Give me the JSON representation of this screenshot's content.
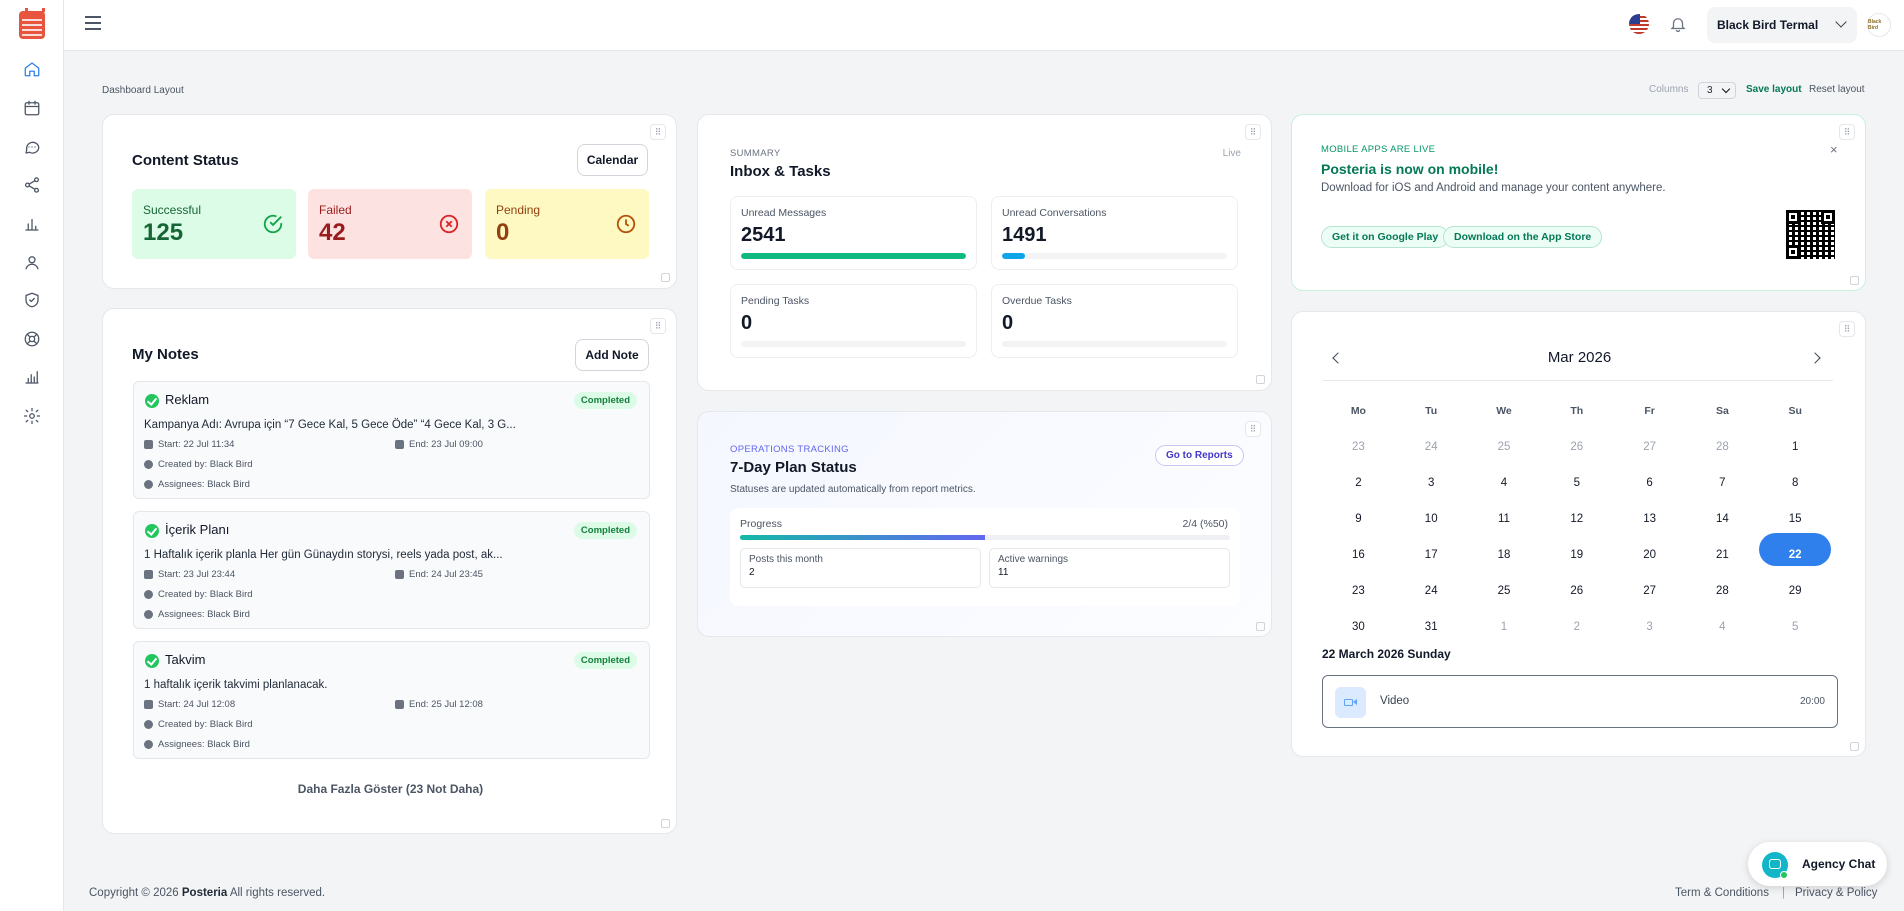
{
  "topbar": {
    "account_name": "Black Bird Termal",
    "avatar_text": "Black Bird"
  },
  "breadcrumb": "Dashboard Layout",
  "layout_controls": {
    "columns_label": "Columns",
    "columns_value": "3",
    "save": "Save layout",
    "reset": "Reset layout"
  },
  "content_status": {
    "title": "Content Status",
    "calendar_button": "Calendar",
    "stats": [
      {
        "label": "Successful",
        "value": "125"
      },
      {
        "label": "Failed",
        "value": "42"
      },
      {
        "label": "Pending",
        "value": "0"
      }
    ]
  },
  "notes": {
    "title": "My Notes",
    "add_button": "Add Note",
    "items": [
      {
        "title": "Reklam",
        "status": "Completed",
        "desc": "Kampanya Adı: Avrupa için “7 Gece Kal, 5 Gece Öde” “4 Gece Kal, 3 G...",
        "start": "Start: 22 Jul 11:34",
        "end": "End: 23 Jul 09:00",
        "created": "Created by: Black Bird",
        "assignees": "Assignees: Black Bird"
      },
      {
        "title": "İçerik Planı",
        "status": "Completed",
        "desc": "1 Haftalık içerik planla Her gün Günaydın storysi, reels yada post, ak...",
        "start": "Start: 23 Jul 23:44",
        "end": "End: 24 Jul 23:45",
        "created": "Created by: Black Bird",
        "assignees": "Assignees: Black Bird"
      },
      {
        "title": "Takvim",
        "status": "Completed",
        "desc": "1 haftalık içerik takvimi planlanacak.",
        "start": "Start: 24 Jul 12:08",
        "end": "End: 25 Jul 12:08",
        "created": "Created by: Black Bird",
        "assignees": "Assignees: Black Bird"
      }
    ],
    "show_more": "Daha Fazla Göster (23 Not Daha)"
  },
  "inbox": {
    "eyebrow": "Summary",
    "title": "Inbox & Tasks",
    "live": "Live",
    "metrics": [
      {
        "label": "Unread Messages",
        "value": "2541",
        "progress": 1.0,
        "color": "#10b981"
      },
      {
        "label": "Unread Conversations",
        "value": "1491",
        "progress": 0.1,
        "color": "#0ea5e9"
      },
      {
        "label": "Pending Tasks",
        "value": "0",
        "progress": 0,
        "color": "#10b981"
      },
      {
        "label": "Overdue Tasks",
        "value": "0",
        "progress": 0,
        "color": "#10b981"
      }
    ]
  },
  "operations": {
    "eyebrow": "Operations Tracking",
    "title": "7-Day Plan Status",
    "subtitle": "Statuses are updated automatically from report metrics.",
    "reports_button": "Go to Reports",
    "progress_label": "Progress",
    "progress_text": "2/4 (%50)",
    "progress": 0.5,
    "posts_label": "Posts this month",
    "posts_value": "2",
    "warnings_label": "Active warnings",
    "warnings_value": "11"
  },
  "mobile": {
    "eyebrow": "Mobile apps are live",
    "title": "Posteria is now on mobile!",
    "text": "Download for iOS and Android and manage your content anywhere.",
    "google": "Get it on Google Play",
    "apple": "Download on the App Store"
  },
  "calendar": {
    "month": "Mar 2026",
    "weekdays": [
      "Mo",
      "Tu",
      "We",
      "Th",
      "Fr",
      "Sa",
      "Su"
    ],
    "weeks": [
      [
        "23",
        "24",
        "25",
        "26",
        "27",
        "28",
        "1"
      ],
      [
        "2",
        "3",
        "4",
        "5",
        "6",
        "7",
        "8"
      ],
      [
        "9",
        "10",
        "11",
        "12",
        "13",
        "14",
        "15"
      ],
      [
        "16",
        "17",
        "18",
        "19",
        "20",
        "21",
        "22"
      ],
      [
        "23",
        "24",
        "25",
        "26",
        "27",
        "28",
        "29"
      ],
      [
        "30",
        "31",
        "1",
        "2",
        "3",
        "4",
        "5"
      ]
    ],
    "selected_date": "22 March 2026 Sunday",
    "event_title": "Video",
    "event_time": "20:00"
  },
  "footer": {
    "copyright_pre": "Copyright © 2026",
    "brand": "Posteria",
    "copyright_post": "All rights reserved.",
    "terms": "Term & Conditions",
    "sep": "|",
    "privacy": "Privacy & Policy"
  },
  "chat": {
    "label": "Agency Chat"
  },
  "colors": {
    "success_bg": "#dcfce7",
    "failed_bg": "#fde2e2",
    "pending_bg": "#fef9c3",
    "accent": "#2f80ed",
    "brand_green": "#047857"
  }
}
